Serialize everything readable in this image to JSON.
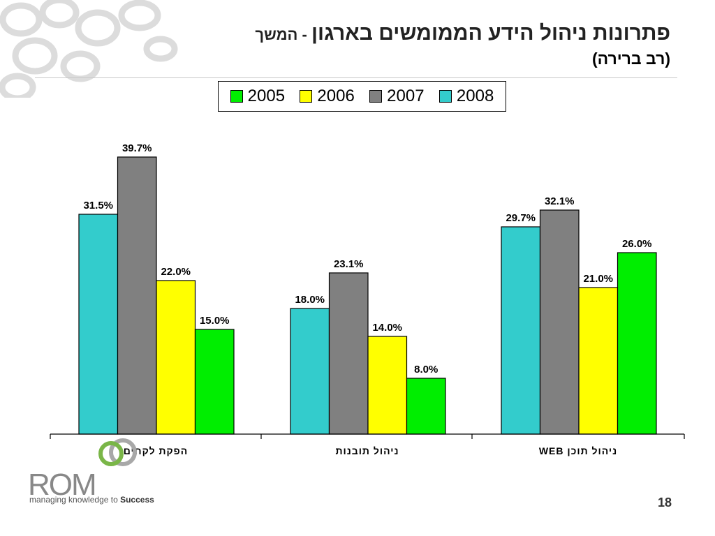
{
  "slide": {
    "title_main": "פתרונות ניהול הידע הממומשים בארגון",
    "title_suffix": " - המשך",
    "title_sub": "(רב ברירה)",
    "title_color": "#222222",
    "suffix_color": "#222222",
    "page_number": "18"
  },
  "logo": {
    "name": "ROM",
    "tagline_prefix": "managing knowledge to ",
    "tagline_emphasis": "Success",
    "mark_color": "#7ab648"
  },
  "chart_data": {
    "type": "bar",
    "categories": [
      "הפקת לקחים",
      "ניהול תובנות",
      "ניהול תוכן WEB"
    ],
    "series": [
      {
        "name": "2008",
        "color": "#33cccc",
        "values": [
          31.5,
          18.0,
          29.7
        ],
        "labels": [
          "31.5%",
          "18.0%",
          "29.7%"
        ]
      },
      {
        "name": "2007",
        "color": "#808080",
        "values": [
          39.7,
          23.1,
          32.1
        ],
        "labels": [
          "39.7%",
          "23.1%",
          "32.1%"
        ]
      },
      {
        "name": "2006",
        "color": "#ffff00",
        "values": [
          22.0,
          14.0,
          21.0
        ],
        "labels": [
          "22.0%",
          "14.0%",
          "21.0%"
        ]
      },
      {
        "name": "2005",
        "color": "#00ee00",
        "values": [
          15.0,
          8.0,
          26.0
        ],
        "labels": [
          "15.0%",
          "8.0%",
          "26.0%"
        ]
      }
    ],
    "legend_order": [
      "2005",
      "2006",
      "2007",
      "2008"
    ],
    "legend_placement": "top",
    "ylim": [
      0,
      50
    ],
    "grid": false
  }
}
